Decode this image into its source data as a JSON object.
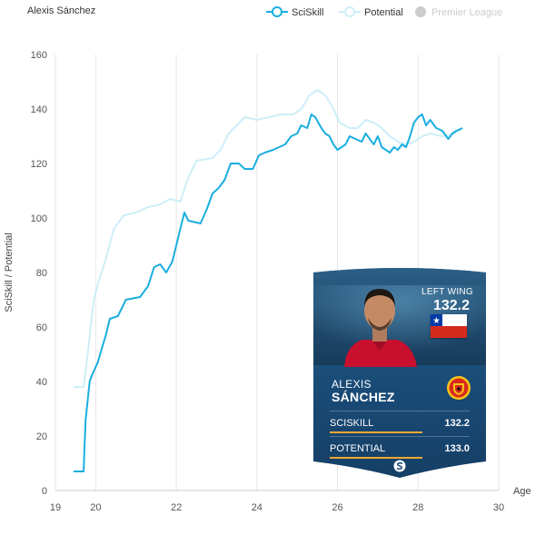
{
  "chart_data": {
    "type": "line",
    "title": "Alexis Sánchez",
    "xlabel": "Age",
    "ylabel": "SciSkill / Potential",
    "xlim": [
      19,
      30
    ],
    "ylim": [
      0,
      160
    ],
    "x_ticks": [
      19,
      20,
      22,
      24,
      26,
      28,
      30
    ],
    "y_ticks": [
      0,
      20,
      40,
      60,
      80,
      100,
      120,
      140,
      160
    ],
    "grid": "vertical",
    "legend_position": "top-right",
    "legend": [
      {
        "name": "SciSkill",
        "color": "#1aaee0",
        "marker": "line-circle"
      },
      {
        "name": "Potential",
        "color": "#cdeef8",
        "marker": "line-circle"
      },
      {
        "name": "Premier League",
        "color": "#cccccc",
        "marker": "dot",
        "inactive": true
      }
    ],
    "series": [
      {
        "name": "SciSkill",
        "color": "#1aaee0",
        "points": [
          [
            19.45,
            7
          ],
          [
            19.7,
            7
          ],
          [
            19.72,
            15
          ],
          [
            19.75,
            26
          ],
          [
            19.8,
            33
          ],
          [
            19.85,
            40
          ],
          [
            19.9,
            42
          ],
          [
            20.05,
            47
          ],
          [
            20.15,
            52
          ],
          [
            20.25,
            57
          ],
          [
            20.35,
            63
          ],
          [
            20.55,
            64
          ],
          [
            20.75,
            70
          ],
          [
            21.1,
            71
          ],
          [
            21.3,
            75
          ],
          [
            21.45,
            82
          ],
          [
            21.6,
            83
          ],
          [
            21.75,
            80
          ],
          [
            21.9,
            84
          ],
          [
            22.0,
            90
          ],
          [
            22.1,
            96
          ],
          [
            22.2,
            102
          ],
          [
            22.3,
            99
          ],
          [
            22.6,
            98
          ],
          [
            22.75,
            103
          ],
          [
            22.9,
            109
          ],
          [
            23.05,
            111
          ],
          [
            23.2,
            114
          ],
          [
            23.35,
            120
          ],
          [
            23.55,
            120
          ],
          [
            23.7,
            118
          ],
          [
            23.9,
            118
          ],
          [
            24.05,
            123
          ],
          [
            24.2,
            124
          ],
          [
            24.4,
            125
          ],
          [
            24.55,
            126
          ],
          [
            24.7,
            127
          ],
          [
            24.85,
            130
          ],
          [
            25.0,
            131
          ],
          [
            25.1,
            134
          ],
          [
            25.25,
            133
          ],
          [
            25.35,
            138
          ],
          [
            25.45,
            137
          ],
          [
            25.6,
            133
          ],
          [
            25.7,
            131
          ],
          [
            25.8,
            130
          ],
          [
            25.9,
            127
          ],
          [
            26.0,
            125
          ],
          [
            26.1,
            126
          ],
          [
            26.2,
            127
          ],
          [
            26.3,
            130
          ],
          [
            26.45,
            129
          ],
          [
            26.6,
            128
          ],
          [
            26.7,
            131
          ],
          [
            26.8,
            129
          ],
          [
            26.9,
            127
          ],
          [
            27.0,
            130
          ],
          [
            27.1,
            126
          ],
          [
            27.2,
            125
          ],
          [
            27.3,
            124
          ],
          [
            27.4,
            126
          ],
          [
            27.5,
            125
          ],
          [
            27.6,
            127
          ],
          [
            27.7,
            126
          ],
          [
            27.8,
            130
          ],
          [
            27.9,
            135
          ],
          [
            28.0,
            137
          ],
          [
            28.1,
            138
          ],
          [
            28.2,
            134
          ],
          [
            28.3,
            136
          ],
          [
            28.45,
            133
          ],
          [
            28.6,
            132
          ],
          [
            28.75,
            129
          ],
          [
            28.85,
            131
          ],
          [
            28.95,
            132
          ],
          [
            29.1,
            133
          ]
        ]
      },
      {
        "name": "Potential",
        "color": "#cdeef8",
        "points": [
          [
            19.45,
            38
          ],
          [
            19.7,
            38
          ],
          [
            19.8,
            50
          ],
          [
            19.95,
            70
          ],
          [
            20.1,
            78
          ],
          [
            20.25,
            85
          ],
          [
            20.45,
            96
          ],
          [
            20.7,
            101
          ],
          [
            21.0,
            102
          ],
          [
            21.3,
            104
          ],
          [
            21.6,
            105
          ],
          [
            21.85,
            107
          ],
          [
            22.1,
            106
          ],
          [
            22.3,
            115
          ],
          [
            22.5,
            121
          ],
          [
            22.9,
            122
          ],
          [
            23.1,
            125
          ],
          [
            23.3,
            131
          ],
          [
            23.5,
            134
          ],
          [
            23.7,
            137
          ],
          [
            24.0,
            136
          ],
          [
            24.3,
            137
          ],
          [
            24.6,
            138
          ],
          [
            24.9,
            138
          ],
          [
            25.1,
            140
          ],
          [
            25.3,
            145
          ],
          [
            25.5,
            147
          ],
          [
            25.7,
            145
          ],
          [
            25.9,
            140
          ],
          [
            26.05,
            135
          ],
          [
            26.3,
            133
          ],
          [
            26.5,
            133
          ],
          [
            26.7,
            136
          ],
          [
            26.9,
            135
          ],
          [
            27.1,
            133
          ],
          [
            27.3,
            130
          ],
          [
            27.5,
            128
          ],
          [
            27.7,
            127
          ],
          [
            27.9,
            128
          ],
          [
            28.1,
            130
          ],
          [
            28.3,
            131
          ],
          [
            28.6,
            130
          ],
          [
            28.9,
            131
          ],
          [
            29.1,
            133
          ]
        ]
      }
    ]
  },
  "card": {
    "position": "LEFT WING",
    "score": "132.2",
    "first_name": "ALEXIS",
    "last_name": "SÁNCHEZ",
    "club_crest": "manchester-united-crest",
    "nationality_flag": "chile-flag",
    "stats": [
      {
        "label": "SCISKILL",
        "value": "132.2",
        "fraction": 0.66
      },
      {
        "label": "POTENTIAL",
        "value": "133.0",
        "fraction": 0.66
      }
    ],
    "footer_icon": "sciskill-logo"
  }
}
